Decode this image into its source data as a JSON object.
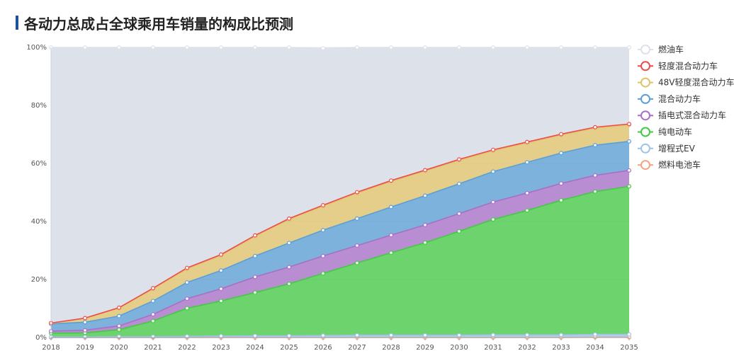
{
  "header": {
    "title": "各动力总成占全球乘用车销量的构成比预测"
  },
  "chart_data": {
    "type": "area",
    "stacked": true,
    "x": [
      "2018",
      "2019",
      "2020",
      "2021",
      "2022",
      "2023",
      "2024",
      "2025",
      "2026",
      "2027",
      "2028",
      "2029",
      "2030",
      "2031",
      "2032",
      "2033",
      "2034",
      "2035"
    ],
    "ylim": [
      0,
      100
    ],
    "yticks": [
      "0%",
      "20%",
      "40%",
      "60%",
      "80%",
      "100%"
    ],
    "legend_position": "right",
    "series": [
      {
        "name": "燃料电池车",
        "color": "#f4a582",
        "values": [
          0,
          0,
          0,
          0,
          0,
          0,
          0,
          0,
          0,
          0,
          0,
          0,
          0,
          0,
          0,
          0,
          0.1,
          0.1
        ]
      },
      {
        "name": "增程式EV",
        "color": "#9ec3e6",
        "values": [
          0.2,
          0.2,
          0.3,
          0.3,
          0.4,
          0.5,
          0.6,
          0.6,
          0.7,
          0.8,
          0.8,
          0.8,
          0.8,
          0.9,
          0.9,
          0.9,
          1.0,
          1.0
        ]
      },
      {
        "name": "纯电动车",
        "color": "#45c945",
        "values": [
          1.3,
          1.4,
          2.4,
          5.4,
          9.7,
          12.1,
          14.9,
          17.9,
          21.4,
          24.9,
          28.4,
          31.9,
          35.8,
          39.8,
          42.9,
          46.4,
          49.2,
          51.0
        ]
      },
      {
        "name": "插电式混合动力车",
        "color": "#a86fc6",
        "values": [
          0.7,
          0.9,
          1.3,
          2.3,
          3.3,
          4.2,
          5.4,
          5.8,
          6.0,
          6.0,
          6.1,
          6.1,
          6.1,
          6.0,
          6.0,
          5.8,
          5.6,
          5.5
        ]
      },
      {
        "name": "混合动力车",
        "color": "#5b9fd4",
        "values": [
          2.5,
          2.8,
          3.4,
          4.6,
          5.6,
          6.3,
          7.2,
          8.3,
          8.9,
          9.3,
          9.7,
          10.1,
          10.3,
          10.5,
          10.6,
          10.5,
          10.4,
          10.0
        ]
      },
      {
        "name": "48V轻度混合动力车",
        "color": "#e0c36a",
        "values": [
          0.2,
          1.3,
          2.7,
          4.2,
          4.7,
          5.2,
          6.8,
          8.1,
          8.3,
          8.8,
          8.8,
          8.5,
          8.1,
          7.2,
          6.7,
          6.2,
          5.9,
          5.7
        ]
      },
      {
        "name": "轻度混合动力车",
        "color": "#ee4b4b",
        "values": [
          0.1,
          0.1,
          0.2,
          0.2,
          0.3,
          0.3,
          0.3,
          0.3,
          0.3,
          0.3,
          0.3,
          0.3,
          0.3,
          0.3,
          0.3,
          0.3,
          0.3,
          0.3
        ]
      },
      {
        "name": "燃油车",
        "color": "#dde2ea",
        "values": [
          95.0,
          93.3,
          89.7,
          83.0,
          76.0,
          71.4,
          64.8,
          59.0,
          54.1,
          49.9,
          45.9,
          42.3,
          38.6,
          35.3,
          32.6,
          29.9,
          27.5,
          26.4
        ]
      }
    ],
    "legend_order": [
      "燃油车",
      "轻度混合动力车",
      "48V轻度混合动力车",
      "混合动力车",
      "插电式混合动力车",
      "纯电动车",
      "增程式EV",
      "燃料电池车"
    ]
  }
}
